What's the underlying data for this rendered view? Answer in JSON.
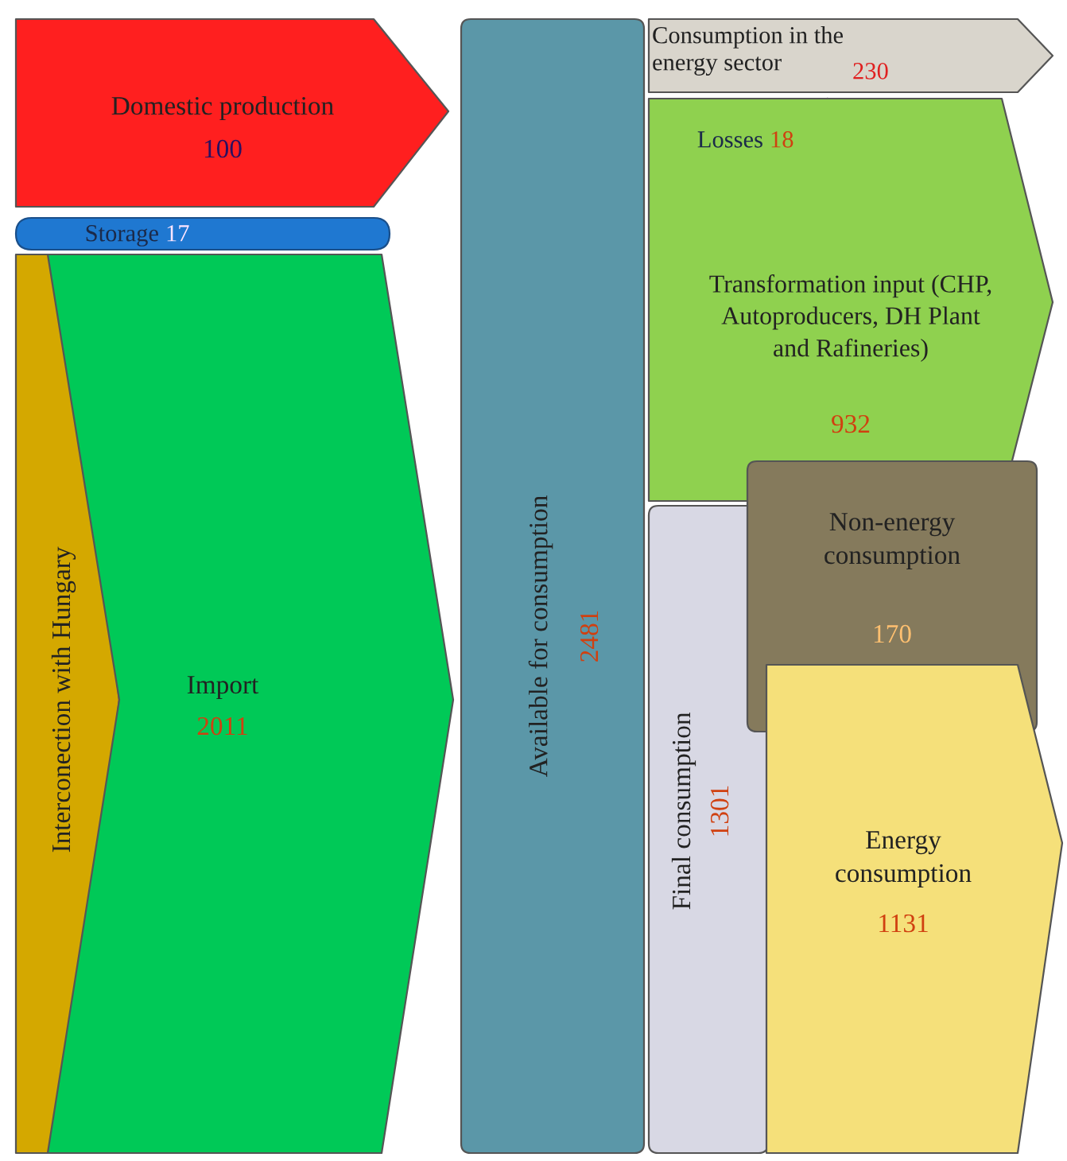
{
  "chart_data": {
    "type": "other",
    "categories": [
      "Domestic production",
      "Storage",
      "Interconection with Hungary",
      "Import",
      "Available for consumption",
      "Consumption in the\nenergy sector",
      "Losses",
      "Transformation input (CHP,\nAutoproducers, DH Plant\nand Rafineries)",
      "Final consumption",
      "Non-energy\nconsumption",
      "Energy\nconsumption"
    ],
    "values": [
      100,
      17,
      null,
      2011,
      2481,
      230,
      18,
      932,
      1301,
      170,
      1131
    ],
    "colors": [
      "#ff1f1f",
      "#1f78d1",
      "#d4a800",
      "#00c957",
      "#5b97a8",
      "#d9d5cc",
      "#8fd14f",
      "#8fd14f",
      "#d8d8e4",
      "#857a5c",
      "#f5e07a"
    ],
    "data_labels": true
  }
}
